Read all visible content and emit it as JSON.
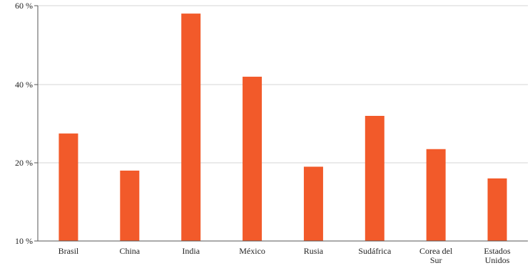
{
  "chart_data": {
    "type": "bar",
    "title": "",
    "xlabel": "",
    "ylabel": "",
    "categories": [
      [
        "Brasil"
      ],
      [
        "China"
      ],
      [
        "India"
      ],
      [
        "México"
      ],
      [
        "Rusia"
      ],
      [
        "Sudáfrica"
      ],
      [
        "Corea del",
        "Sur"
      ],
      [
        "Estados",
        "Unidos"
      ]
    ],
    "values": [
      27.5,
      19.0,
      58.0,
      42.0,
      19.5,
      32.0,
      23.5,
      18.0
    ],
    "ylim": [
      10,
      60
    ],
    "yticks": [
      {
        "value": 10,
        "label": "10 %"
      },
      {
        "value": 20,
        "label": "20 %"
      },
      {
        "value": 40,
        "label": "40 %"
      },
      {
        "value": 60,
        "label": "60 %"
      }
    ],
    "grid": true,
    "bar_color": "#f25a2a",
    "grid_color": "#d5d5d5",
    "axis_color": "#555555"
  }
}
